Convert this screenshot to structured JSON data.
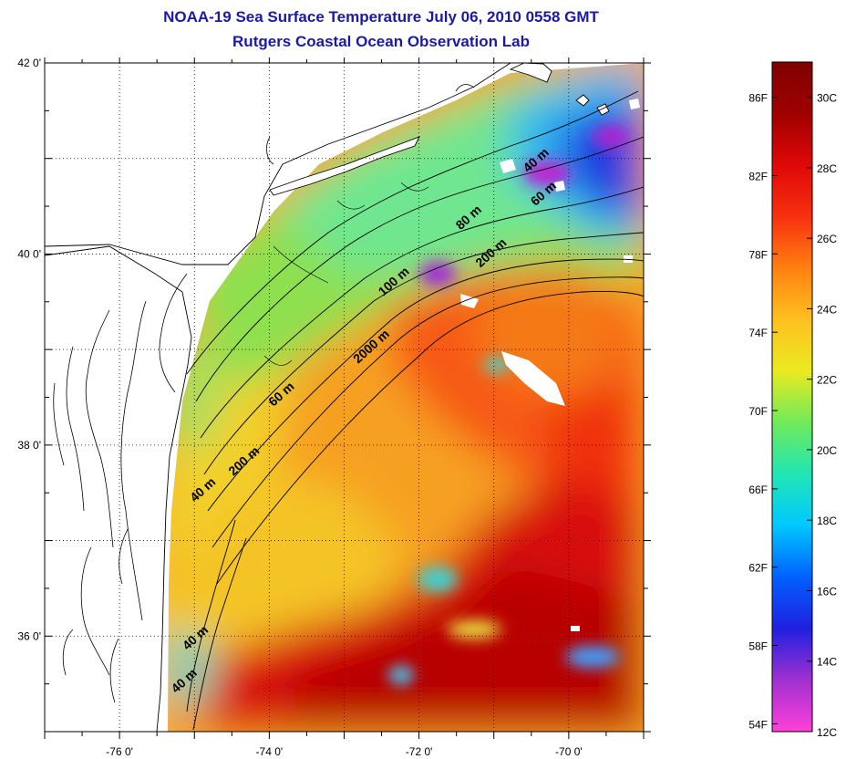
{
  "title": {
    "line1": "NOAA-19 Sea Surface Temperature July 06, 2010 0558 GMT",
    "line2": "Rutgers Coastal Ocean Observation Lab"
  },
  "map": {
    "lon_range": [
      -77,
      -69
    ],
    "lat_range": [
      35,
      42
    ],
    "lon_ticks": [
      {
        "value": -76,
        "label": "-76 0'"
      },
      {
        "value": -74,
        "label": "-74 0'"
      },
      {
        "value": -72,
        "label": "-72 0'"
      },
      {
        "value": -70,
        "label": "-70 0'"
      }
    ],
    "lat_ticks": [
      {
        "value": 42,
        "label": "42 0'"
      },
      {
        "value": 40,
        "label": "40 0'"
      },
      {
        "value": 38,
        "label": "38 0'"
      },
      {
        "value": 36,
        "label": "36 0'"
      }
    ],
    "grid": "dotted",
    "contour_labels": [
      {
        "text": "40 m",
        "lon": -70.4,
        "lat": 40.95
      },
      {
        "text": "60 m",
        "lon": -70.3,
        "lat": 40.6
      },
      {
        "text": "80 m",
        "lon": -71.3,
        "lat": 40.35
      },
      {
        "text": "200 m",
        "lon": -71.0,
        "lat": 39.98
      },
      {
        "text": "100 m",
        "lon": -72.3,
        "lat": 39.68
      },
      {
        "text": "2000 m",
        "lon": -72.6,
        "lat": 39.0
      },
      {
        "text": "60 m",
        "lon": -73.8,
        "lat": 38.5
      },
      {
        "text": "200 m",
        "lon": -74.3,
        "lat": 37.8
      },
      {
        "text": "40 m",
        "lon": -74.85,
        "lat": 37.5
      },
      {
        "text": "40 m",
        "lon": -74.95,
        "lat": 35.95
      },
      {
        "text": "40 m",
        "lon": -75.1,
        "lat": 35.5
      }
    ]
  },
  "colorbar": {
    "fahrenheit_labels": [
      "86F",
      "82F",
      "78F",
      "74F",
      "70F",
      "66F",
      "62F",
      "58F",
      "54F"
    ],
    "celsius_labels": [
      "30C",
      "28C",
      "26C",
      "24C",
      "22C",
      "20C",
      "18C",
      "16C",
      "14C",
      "12C"
    ],
    "range_c": [
      12,
      31
    ],
    "colors": [
      "#ff40d8",
      "#a030d0",
      "#2020e0",
      "#0060ff",
      "#00c8ff",
      "#20e6b4",
      "#70ea5a",
      "#eaea20",
      "#ffc020",
      "#ff8010",
      "#f83010",
      "#e00808",
      "#a00000",
      "#800000"
    ]
  }
}
